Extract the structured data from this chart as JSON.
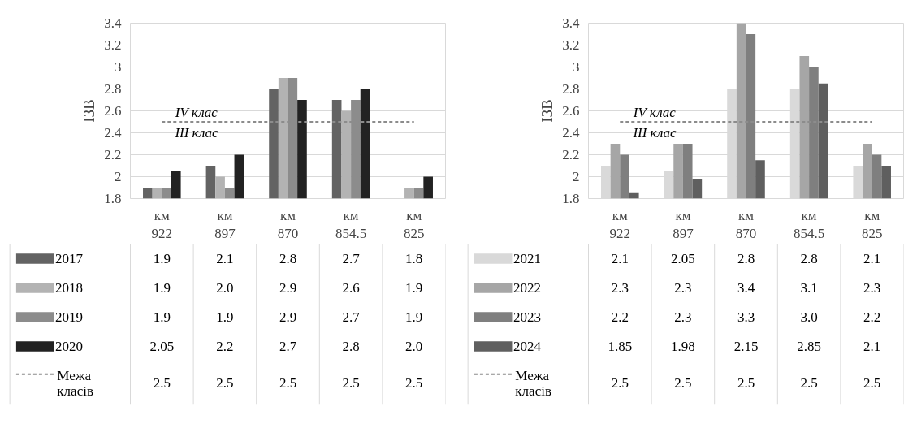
{
  "chart_data": [
    {
      "type": "bar",
      "ylabel": "ІЗВ",
      "categories": [
        "км 922",
        "км 897",
        "км 870",
        "км 854.5",
        "км 825"
      ],
      "ylim": [
        1.8,
        3.4
      ],
      "yticks": [
        1.8,
        2,
        2.2,
        2.4,
        2.6,
        2.8,
        3,
        3.2,
        3.4
      ],
      "grid": "y",
      "legend": "bottom",
      "annotations": [
        "IV клас",
        "III клас"
      ],
      "series": [
        {
          "name": "2017",
          "color": "#636363",
          "values": [
            1.9,
            2.1,
            2.8,
            2.7,
            1.8
          ],
          "value_labels": [
            "1.9",
            "2.1",
            "2.8",
            "2.7",
            "1.8"
          ]
        },
        {
          "name": "2018",
          "color": "#b3b3b3",
          "values": [
            1.9,
            2.0,
            2.9,
            2.6,
            1.9
          ],
          "value_labels": [
            "1.9",
            "2.0",
            "2.9",
            "2.6",
            "1.9"
          ]
        },
        {
          "name": "2019",
          "color": "#8c8c8c",
          "values": [
            1.9,
            1.9,
            2.9,
            2.7,
            1.9
          ],
          "value_labels": [
            "1.9",
            "1.9",
            "2.9",
            "2.7",
            "1.9"
          ]
        },
        {
          "name": "2020",
          "color": "#222222",
          "values": [
            2.05,
            2.2,
            2.7,
            2.8,
            2.0
          ],
          "value_labels": [
            "2.05",
            "2.2",
            "2.7",
            "2.8",
            "2.0"
          ]
        },
        {
          "name": "Межа класів",
          "type": "line",
          "line_style": "dashed",
          "color": "#8c8c8c",
          "values": [
            2.5,
            2.5,
            2.5,
            2.5,
            2.5
          ],
          "value_labels": [
            "2.5",
            "2.5",
            "2.5",
            "2.5",
            "2.5"
          ]
        }
      ]
    },
    {
      "type": "bar",
      "ylabel": "ІЗВ",
      "categories": [
        "км 922",
        "км 897",
        "км 870",
        "км 854.5",
        "км 825"
      ],
      "ylim": [
        1.8,
        3.4
      ],
      "yticks": [
        1.8,
        2,
        2.2,
        2.4,
        2.6,
        2.8,
        3,
        3.2,
        3.4
      ],
      "grid": "y",
      "legend": "bottom",
      "annotations": [
        "IV клас",
        "III клас"
      ],
      "series": [
        {
          "name": "2021",
          "color": "#d9d9d9",
          "values": [
            2.1,
            2.05,
            2.8,
            2.8,
            2.1
          ],
          "value_labels": [
            "2.1",
            "2.05",
            "2.8",
            "2.8",
            "2.1"
          ]
        },
        {
          "name": "2022",
          "color": "#a6a6a6",
          "values": [
            2.3,
            2.3,
            3.4,
            3.1,
            2.3
          ],
          "value_labels": [
            "2.3",
            "2.3",
            "3.4",
            "3.1",
            "2.3"
          ]
        },
        {
          "name": "2023",
          "color": "#7f7f7f",
          "values": [
            2.2,
            2.3,
            3.3,
            3.0,
            2.2
          ],
          "value_labels": [
            "2.2",
            "2.3",
            "3.3",
            "3.0",
            "2.2"
          ]
        },
        {
          "name": "2024",
          "color": "#5f5f5f",
          "values": [
            1.85,
            1.98,
            2.15,
            2.85,
            2.1
          ],
          "value_labels": [
            "1.85",
            "1.98",
            "2.15",
            "2.85",
            "2.1"
          ]
        },
        {
          "name": "Межа класів",
          "type": "line",
          "line_style": "dashed",
          "color": "#8c8c8c",
          "values": [
            2.5,
            2.5,
            2.5,
            2.5,
            2.5
          ],
          "value_labels": [
            "2.5",
            "2.5",
            "2.5",
            "2.5",
            "2.5"
          ]
        }
      ]
    }
  ]
}
